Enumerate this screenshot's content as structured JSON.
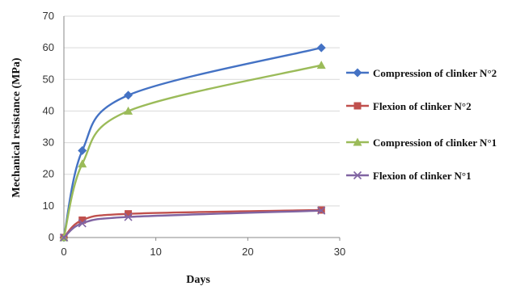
{
  "chart_data": {
    "type": "line",
    "xlabel": "Days",
    "ylabel": "Mechanical resistance (MPa)",
    "xlim": [
      0,
      30
    ],
    "ylim": [
      0,
      70
    ],
    "xticks": [
      0,
      10,
      20,
      30
    ],
    "yticks": [
      0,
      10,
      20,
      30,
      40,
      50,
      60,
      70
    ],
    "grid": "horizontal",
    "legend_position": "right",
    "series": [
      {
        "name": "Compression  of clinker N°2",
        "marker": "diamond",
        "color": "#4472c4",
        "x": [
          0,
          2,
          7,
          28
        ],
        "y": [
          0,
          27.5,
          45,
          60
        ]
      },
      {
        "name": "Flexion  of clinker N°2",
        "marker": "square",
        "color": "#c0504d",
        "x": [
          0,
          2,
          7,
          28
        ],
        "y": [
          0,
          5.5,
          7.5,
          8.7
        ]
      },
      {
        "name": "Compression  of clinker N°1",
        "marker": "triangle",
        "color": "#9bbb59",
        "x": [
          0,
          2,
          7,
          28
        ],
        "y": [
          0,
          23.3,
          40,
          54.5
        ]
      },
      {
        "name": "Flexion  of clinker N°1",
        "marker": "x",
        "color": "#8064a2",
        "x": [
          0,
          2,
          7,
          28
        ],
        "y": [
          0,
          4.5,
          6.5,
          8.5
        ]
      }
    ]
  }
}
